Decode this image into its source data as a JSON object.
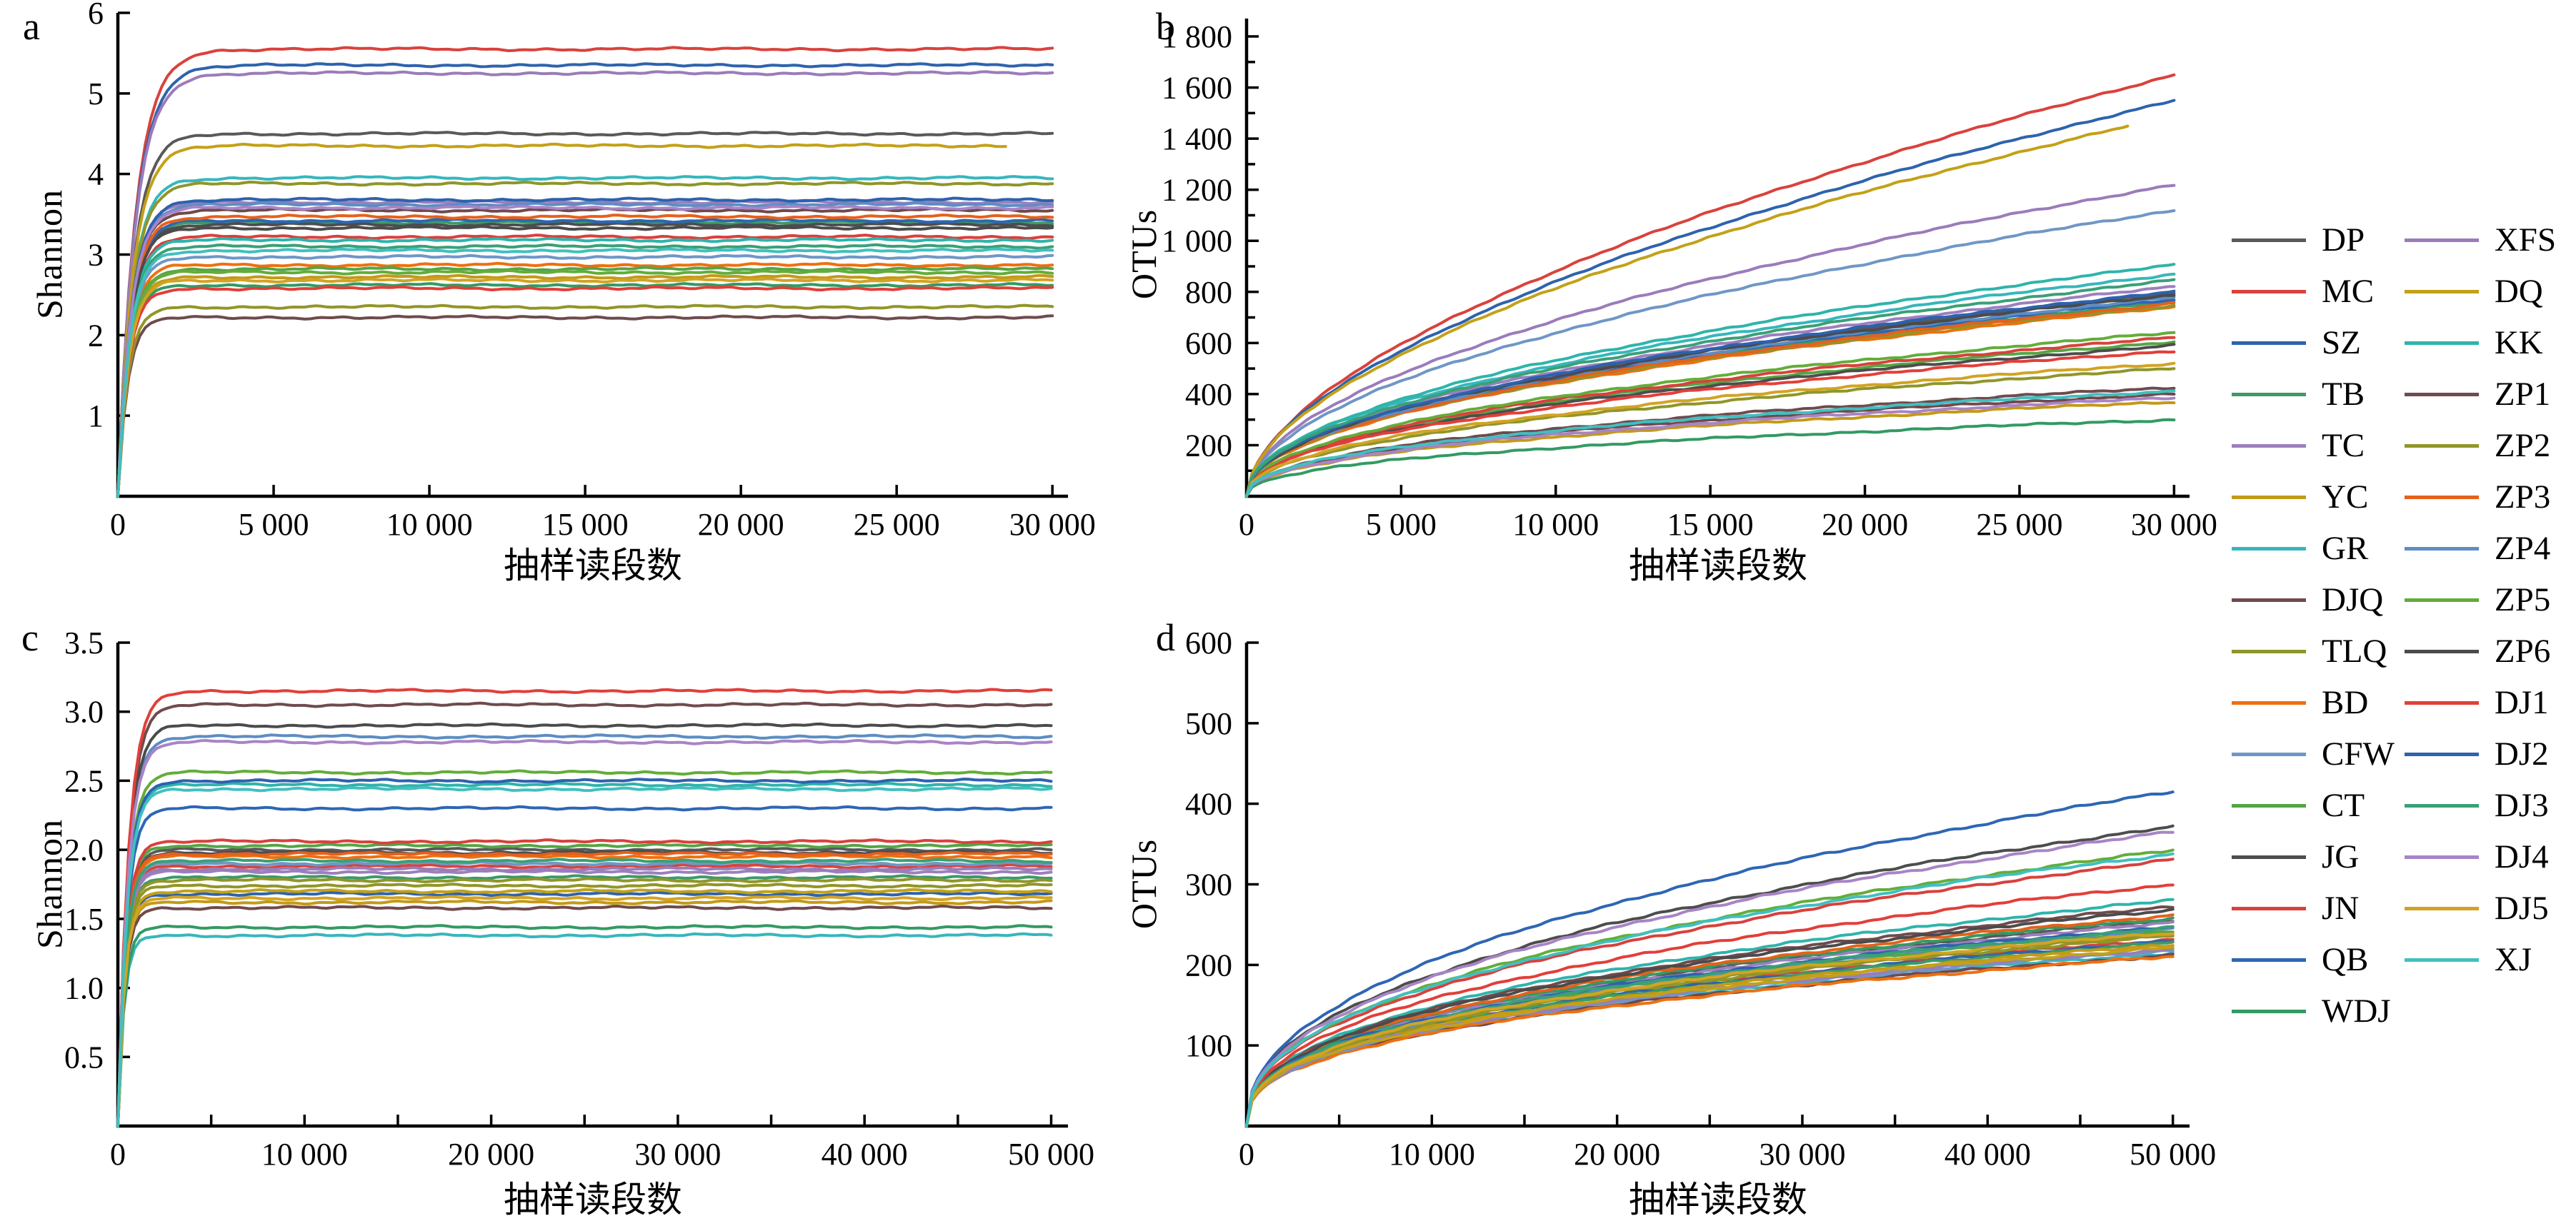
{
  "colors": {
    "DP": "#595959",
    "MC": "#d9423c",
    "SZ": "#2e63ad",
    "TB": "#3d9a68",
    "TC": "#9d7fbd",
    "YC": "#c39a18",
    "GR": "#37b6bc",
    "DJQ": "#70494c",
    "TLQ": "#8f9629",
    "BD": "#ee7010",
    "CFW": "#6f97c6",
    "CT": "#55a544",
    "JG": "#4d4d4d",
    "JN": "#d8413c",
    "QB": "#2e66b4",
    "WDJ": "#339a63",
    "XFS": "#9a7cba",
    "DQ": "#c3a118",
    "KK": "#2fb4ab",
    "ZP1": "#6f4b4e",
    "ZP2": "#919627",
    "ZP3": "#e5611c",
    "ZP4": "#5d8dc3",
    "ZP5": "#63ad3a",
    "ZP6": "#4b4b4b",
    "DJ1": "#e23f39",
    "DJ2": "#2d62ae",
    "DJ3": "#3aa077",
    "DJ4": "#a884c6",
    "DJ5": "#d2a324",
    "XJ": "#41bfc0"
  },
  "legend": {
    "columns": [
      [
        "DP",
        "MC",
        "SZ",
        "TB",
        "TC",
        "YC",
        "GR",
        "DJQ",
        "TLQ",
        "BD",
        "CFW",
        "CT",
        "JG",
        "JN",
        "QB",
        "WDJ"
      ],
      [
        "XFS",
        "DQ",
        "KK",
        "ZP1",
        "ZP2",
        "ZP3",
        "ZP4",
        "ZP5",
        "ZP6",
        "DJ1",
        "DJ2",
        "DJ3",
        "DJ4",
        "DJ5",
        "XJ"
      ]
    ]
  },
  "chart_data": [
    {
      "id": "a",
      "letter": "a",
      "type": "line",
      "title": "",
      "xlabel": "抽样读段数",
      "ylabel": "Shannon",
      "x_range": [
        0,
        30000
      ],
      "y_range": [
        0,
        6
      ],
      "grid": false,
      "curve": "saturating",
      "x_ticks": [
        {
          "v": 0,
          "label": "0"
        },
        {
          "v": 5000,
          "label": "5 000"
        },
        {
          "v": 10000,
          "label": "10 000"
        },
        {
          "v": 15000,
          "label": "15 000"
        },
        {
          "v": 20000,
          "label": "20 000"
        },
        {
          "v": 25000,
          "label": "25 000"
        },
        {
          "v": 30000,
          "label": "30 000"
        }
      ],
      "y_ticks": [
        {
          "v": 1,
          "label": "1"
        },
        {
          "v": 2,
          "label": "2"
        },
        {
          "v": 3,
          "label": "3"
        },
        {
          "v": 4,
          "label": "4"
        },
        {
          "v": 5,
          "label": "5"
        },
        {
          "v": 6,
          "label": "6"
        }
      ],
      "series": [
        {
          "name": "DP",
          "y_end": 4.5
        },
        {
          "name": "MC",
          "y_end": 5.55
        },
        {
          "name": "SZ",
          "y_end": 5.35
        },
        {
          "name": "TB",
          "y_end": 3.4
        },
        {
          "name": "TC",
          "y_end": 3.65
        },
        {
          "name": "YC",
          "y_end": 2.72
        },
        {
          "name": "GR",
          "y_end": 3.95
        },
        {
          "name": "DJQ",
          "y_end": 3.55
        },
        {
          "name": "TLQ",
          "y_end": 3.88
        },
        {
          "name": "BD",
          "y_end": 2.87
        },
        {
          "name": "CFW",
          "y_end": 2.97
        },
        {
          "name": "CT",
          "y_end": 2.82
        },
        {
          "name": "JG",
          "y_end": 3.37
        },
        {
          "name": "JN",
          "y_end": 3.22
        },
        {
          "name": "QB",
          "y_end": 3.42
        },
        {
          "name": "WDJ",
          "y_end": 2.62
        },
        {
          "name": "XFS",
          "y_end": 5.25
        },
        {
          "name": "DQ",
          "y_end": 4.35,
          "x_end": 28500
        },
        {
          "name": "KK",
          "y_end": 3.18
        },
        {
          "name": "ZP1",
          "y_end": 2.22
        },
        {
          "name": "ZP2",
          "y_end": 2.35
        },
        {
          "name": "ZP3",
          "y_end": 3.47
        },
        {
          "name": "ZP4",
          "y_end": 3.62
        },
        {
          "name": "ZP5",
          "y_end": 2.78
        },
        {
          "name": "ZP6",
          "y_end": 3.33
        },
        {
          "name": "DJ1",
          "y_end": 2.58
        },
        {
          "name": "DJ2",
          "y_end": 3.68
        },
        {
          "name": "DJ3",
          "y_end": 3.1
        },
        {
          "name": "DJ4",
          "y_end": 3.58
        },
        {
          "name": "DJ5",
          "y_end": 2.68
        },
        {
          "name": "XJ",
          "y_end": 3.05
        }
      ]
    },
    {
      "id": "b",
      "letter": "b",
      "type": "line",
      "title": "",
      "xlabel": "抽样读段数",
      "ylabel": "OTUs",
      "x_range": [
        0,
        30000
      ],
      "y_range": [
        0,
        1870
      ],
      "grid": false,
      "curve": "power",
      "x_ticks": [
        {
          "v": 0,
          "label": "0"
        },
        {
          "v": 5000,
          "label": "5 000"
        },
        {
          "v": 10000,
          "label": "10 000"
        },
        {
          "v": 15000,
          "label": "15 000"
        },
        {
          "v": 20000,
          "label": "20 000"
        },
        {
          "v": 25000,
          "label": "25 000"
        },
        {
          "v": 30000,
          "label": "30 000"
        }
      ],
      "y_ticks": [
        {
          "v": 100
        },
        {
          "v": 200,
          "label": "200"
        },
        {
          "v": 300
        },
        {
          "v": 400,
          "label": "400"
        },
        {
          "v": 500
        },
        {
          "v": 600,
          "label": "600"
        },
        {
          "v": 700
        },
        {
          "v": 800,
          "label": "800"
        },
        {
          "v": 900
        },
        {
          "v": 1000,
          "label": "1 000"
        },
        {
          "v": 1100
        },
        {
          "v": 1200,
          "label": "1 200"
        },
        {
          "v": 1300
        },
        {
          "v": 1400,
          "label": "1 400"
        },
        {
          "v": 1500
        },
        {
          "v": 1600,
          "label": "1 600"
        },
        {
          "v": 1700
        },
        {
          "v": 1800,
          "label": "1 800"
        }
      ],
      "series": [
        {
          "name": "DP",
          "y_end": 795
        },
        {
          "name": "MC",
          "y_end": 1650
        },
        {
          "name": "SZ",
          "y_end": 1550
        },
        {
          "name": "TB",
          "y_end": 762
        },
        {
          "name": "TC",
          "y_end": 820
        },
        {
          "name": "YC",
          "y_end": 370
        },
        {
          "name": "GR",
          "y_end": 870
        },
        {
          "name": "DJQ",
          "y_end": 400
        },
        {
          "name": "TLQ",
          "y_end": 500
        },
        {
          "name": "BD",
          "y_end": 740
        },
        {
          "name": "CFW",
          "y_end": 1120
        },
        {
          "name": "CT",
          "y_end": 605
        },
        {
          "name": "JG",
          "y_end": 590
        },
        {
          "name": "JN",
          "y_end": 620
        },
        {
          "name": "QB",
          "y_end": 770
        },
        {
          "name": "WDJ",
          "y_end": 300
        },
        {
          "name": "XFS",
          "y_end": 1220
        },
        {
          "name": "DQ",
          "y_end": 1490,
          "x_end": 28500
        },
        {
          "name": "KK",
          "y_end": 905
        },
        {
          "name": "ZP1",
          "y_end": 425
        },
        {
          "name": "ZP2",
          "y_end": 748
        },
        {
          "name": "ZP3",
          "y_end": 755
        },
        {
          "name": "ZP4",
          "y_end": 778
        },
        {
          "name": "ZP5",
          "y_end": 640
        },
        {
          "name": "ZP6",
          "y_end": 788
        },
        {
          "name": "DJ1",
          "y_end": 570
        },
        {
          "name": "DJ2",
          "y_end": 802
        },
        {
          "name": "DJ3",
          "y_end": 845
        },
        {
          "name": "DJ4",
          "y_end": 385
        },
        {
          "name": "DJ5",
          "y_end": 520
        },
        {
          "name": "XJ",
          "y_end": 412
        }
      ]
    },
    {
      "id": "c",
      "letter": "c",
      "type": "line",
      "title": "",
      "xlabel": "抽样读段数",
      "ylabel": "Shannon",
      "x_range": [
        0,
        50000
      ],
      "y_range": [
        0,
        3.5
      ],
      "grid": false,
      "curve": "saturating",
      "x_ticks": [
        {
          "v": 0,
          "label": "0"
        },
        {
          "v": 5000
        },
        {
          "v": 10000,
          "label": "10 000"
        },
        {
          "v": 15000
        },
        {
          "v": 20000,
          "label": "20 000"
        },
        {
          "v": 25000
        },
        {
          "v": 30000,
          "label": "30 000"
        },
        {
          "v": 35000
        },
        {
          "v": 40000,
          "label": "40 000"
        },
        {
          "v": 45000
        },
        {
          "v": 50000,
          "label": "50 000"
        }
      ],
      "y_ticks": [
        {
          "v": 0.5,
          "label": "0.5"
        },
        {
          "v": 1.0,
          "label": "1.0"
        },
        {
          "v": 1.5,
          "label": "1.5"
        },
        {
          "v": 2.0,
          "label": "2.0"
        },
        {
          "v": 2.5,
          "label": "2.5"
        },
        {
          "v": 3.0,
          "label": "3.0"
        },
        {
          "v": 3.5,
          "label": "3.5"
        }
      ],
      "series": [
        {
          "name": "DP",
          "y_end": 2.0
        },
        {
          "name": "MC",
          "y_end": 1.88
        },
        {
          "name": "SZ",
          "y_end": 1.68
        },
        {
          "name": "TB",
          "y_end": 1.8
        },
        {
          "name": "TC",
          "y_end": 1.84
        },
        {
          "name": "YC",
          "y_end": 1.62
        },
        {
          "name": "GR",
          "y_end": 1.38
        },
        {
          "name": "DJQ",
          "y_end": 1.58
        },
        {
          "name": "TLQ",
          "y_end": 1.78
        },
        {
          "name": "BD",
          "y_end": 1.95
        },
        {
          "name": "CFW",
          "y_end": 1.9
        },
        {
          "name": "CT",
          "y_end": 2.03
        },
        {
          "name": "JG",
          "y_end": 1.98
        },
        {
          "name": "JN",
          "y_end": 2.06
        },
        {
          "name": "QB",
          "y_end": 2.3
        },
        {
          "name": "WDJ",
          "y_end": 1.44
        },
        {
          "name": "XFS",
          "y_end": 1.86
        },
        {
          "name": "DQ",
          "y_end": 1.7
        },
        {
          "name": "KK",
          "y_end": 2.47
        },
        {
          "name": "ZP1",
          "y_end": 3.05
        },
        {
          "name": "ZP2",
          "y_end": 1.74
        },
        {
          "name": "ZP3",
          "y_end": 1.97
        },
        {
          "name": "ZP4",
          "y_end": 2.82
        },
        {
          "name": "ZP5",
          "y_end": 2.56
        },
        {
          "name": "ZP6",
          "y_end": 2.9
        },
        {
          "name": "DJ1",
          "y_end": 3.15
        },
        {
          "name": "DJ2",
          "y_end": 2.5
        },
        {
          "name": "DJ3",
          "y_end": 1.92
        },
        {
          "name": "DJ4",
          "y_end": 2.78
        },
        {
          "name": "DJ5",
          "y_end": 1.65
        },
        {
          "name": "XJ",
          "y_end": 2.44
        }
      ]
    },
    {
      "id": "d",
      "letter": "d",
      "type": "line",
      "title": "",
      "xlabel": "抽样读段数",
      "ylabel": "OTUs",
      "x_range": [
        0,
        50000
      ],
      "y_range": [
        0,
        600
      ],
      "grid": false,
      "curve": "power",
      "x_ticks": [
        {
          "v": 0,
          "label": "0"
        },
        {
          "v": 5000
        },
        {
          "v": 10000,
          "label": "10 000"
        },
        {
          "v": 15000
        },
        {
          "v": 20000,
          "label": "20 000"
        },
        {
          "v": 25000
        },
        {
          "v": 30000,
          "label": "30 000"
        },
        {
          "v": 35000
        },
        {
          "v": 40000,
          "label": "40 000"
        },
        {
          "v": 45000
        },
        {
          "v": 50000,
          "label": "50 000"
        }
      ],
      "y_ticks": [
        {
          "v": 100,
          "label": "100"
        },
        {
          "v": 200,
          "label": "200"
        },
        {
          "v": 300,
          "label": "300"
        },
        {
          "v": 400,
          "label": "400"
        },
        {
          "v": 500,
          "label": "500"
        },
        {
          "v": 600,
          "label": "600"
        }
      ],
      "series": [
        {
          "name": "DP",
          "y_end": 255
        },
        {
          "name": "MC",
          "y_end": 232
        },
        {
          "name": "SZ",
          "y_end": 230
        },
        {
          "name": "TB",
          "y_end": 228
        },
        {
          "name": "TC",
          "y_end": 252
        },
        {
          "name": "YC",
          "y_end": 225
        },
        {
          "name": "GR",
          "y_end": 215
        },
        {
          "name": "DJQ",
          "y_end": 212
        },
        {
          "name": "TLQ",
          "y_end": 236
        },
        {
          "name": "BD",
          "y_end": 210
        },
        {
          "name": "CFW",
          "y_end": 218
        },
        {
          "name": "CT",
          "y_end": 243
        },
        {
          "name": "JG",
          "y_end": 372
        },
        {
          "name": "JN",
          "y_end": 330
        },
        {
          "name": "QB",
          "y_end": 415
        },
        {
          "name": "WDJ",
          "y_end": 258
        },
        {
          "name": "XFS",
          "y_end": 220
        },
        {
          "name": "DQ",
          "y_end": 222
        },
        {
          "name": "KK",
          "y_end": 280
        },
        {
          "name": "ZP1",
          "y_end": 272
        },
        {
          "name": "ZP2",
          "y_end": 238
        },
        {
          "name": "ZP3",
          "y_end": 262
        },
        {
          "name": "ZP4",
          "y_end": 245
        },
        {
          "name": "ZP5",
          "y_end": 342
        },
        {
          "name": "ZP6",
          "y_end": 268
        },
        {
          "name": "DJ1",
          "y_end": 300
        },
        {
          "name": "DJ2",
          "y_end": 248
        },
        {
          "name": "DJ3",
          "y_end": 246
        },
        {
          "name": "DJ4",
          "y_end": 365
        },
        {
          "name": "DJ5",
          "y_end": 240
        },
        {
          "name": "XJ",
          "y_end": 338
        }
      ]
    }
  ]
}
